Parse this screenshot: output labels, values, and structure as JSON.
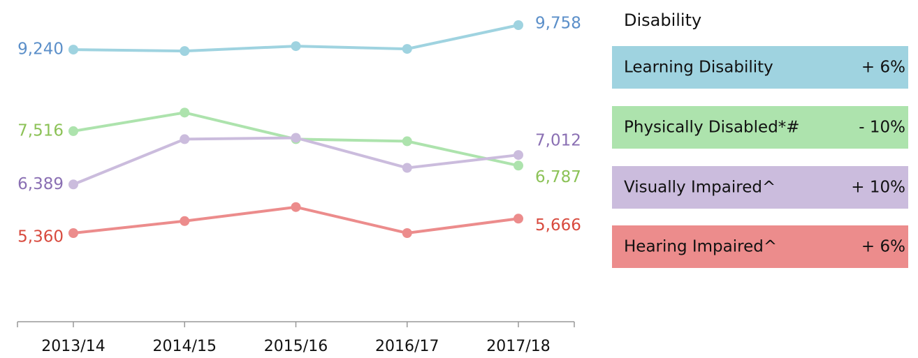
{
  "chart_data": {
    "type": "line",
    "categories": [
      "2013/14",
      "2014/15",
      "2015/16",
      "2016/17",
      "2017/18"
    ],
    "legend_title": "Disability",
    "series": [
      {
        "name": "Learning Disability",
        "change": "+ 6%",
        "color": "#9fd3e0",
        "label_color": "#5b8fc9",
        "values": [
          9240,
          9210,
          9314,
          9255,
          9758
        ],
        "value_labels": [
          "9,240",
          null,
          null,
          null,
          "9,758"
        ]
      },
      {
        "name": "Physically Disabled*#",
        "change": "- 10%",
        "color": "#ade3ad",
        "label_color": "#8cc257",
        "values": [
          7516,
          7908,
          7346,
          7302,
          6787
        ],
        "value_labels": [
          "7,516",
          null,
          null,
          null,
          "6,787"
        ]
      },
      {
        "name": "Visually Impaired^",
        "change": "+ 10%",
        "color": "#cbbcdd",
        "label_color": "#8a6fb3",
        "values": [
          6389,
          7346,
          7375,
          6739,
          7012
        ],
        "value_labels": [
          "6,389",
          null,
          null,
          null,
          "7,012"
        ]
      },
      {
        "name": "Hearing Impaired^",
        "change": "+ 6%",
        "color": "#ec8c8c",
        "label_color": "#d84a3e",
        "values": [
          5360,
          5614,
          5910,
          5360,
          5666
        ],
        "value_labels": [
          "5,360",
          null,
          null,
          null,
          "5,666"
        ]
      }
    ]
  }
}
